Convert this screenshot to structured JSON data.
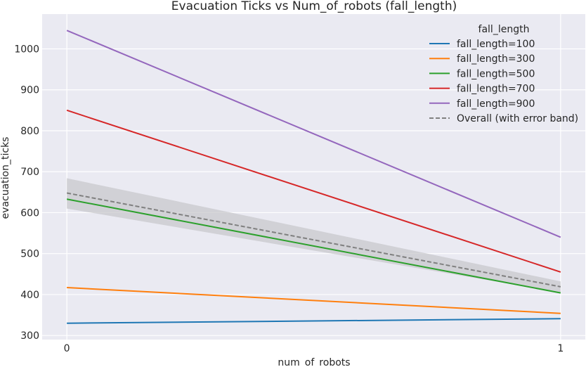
{
  "chart_data": {
    "type": "line",
    "title": "Evacuation Ticks vs Num_of_robots (fall_length)",
    "xlabel": "num_of_robots",
    "ylabel": "evacuation_ticks",
    "x": [
      0,
      1
    ],
    "x_ticks": [
      "0",
      "1"
    ],
    "xlim": [
      -0.05,
      1.05
    ],
    "ylim": [
      290,
      1085
    ],
    "y_ticks": [
      300,
      400,
      500,
      600,
      700,
      800,
      900,
      1000
    ],
    "grid": true,
    "legend": {
      "title": "fall_length",
      "placement": "top-right"
    },
    "series": [
      {
        "name": "fall_length=100",
        "color": "#1f77b4",
        "values": [
          330,
          341
        ]
      },
      {
        "name": "fall_length=300",
        "color": "#ff7f0e",
        "values": [
          417,
          354
        ]
      },
      {
        "name": "fall_length=500",
        "color": "#2ca02c",
        "values": [
          633,
          404
        ]
      },
      {
        "name": "fall_length=700",
        "color": "#d62728",
        "values": [
          850,
          455
        ]
      },
      {
        "name": "fall_length=900",
        "color": "#9467bd",
        "values": [
          1045,
          540
        ]
      }
    ],
    "overall": {
      "name": "Overall (with error band)",
      "color": "#808080",
      "values": [
        648,
        419
      ],
      "band_lower": [
        610,
        405
      ],
      "band_upper": [
        684,
        432
      ],
      "band_color": "#c8c8cc"
    },
    "background_color": "#eaeaf2"
  }
}
